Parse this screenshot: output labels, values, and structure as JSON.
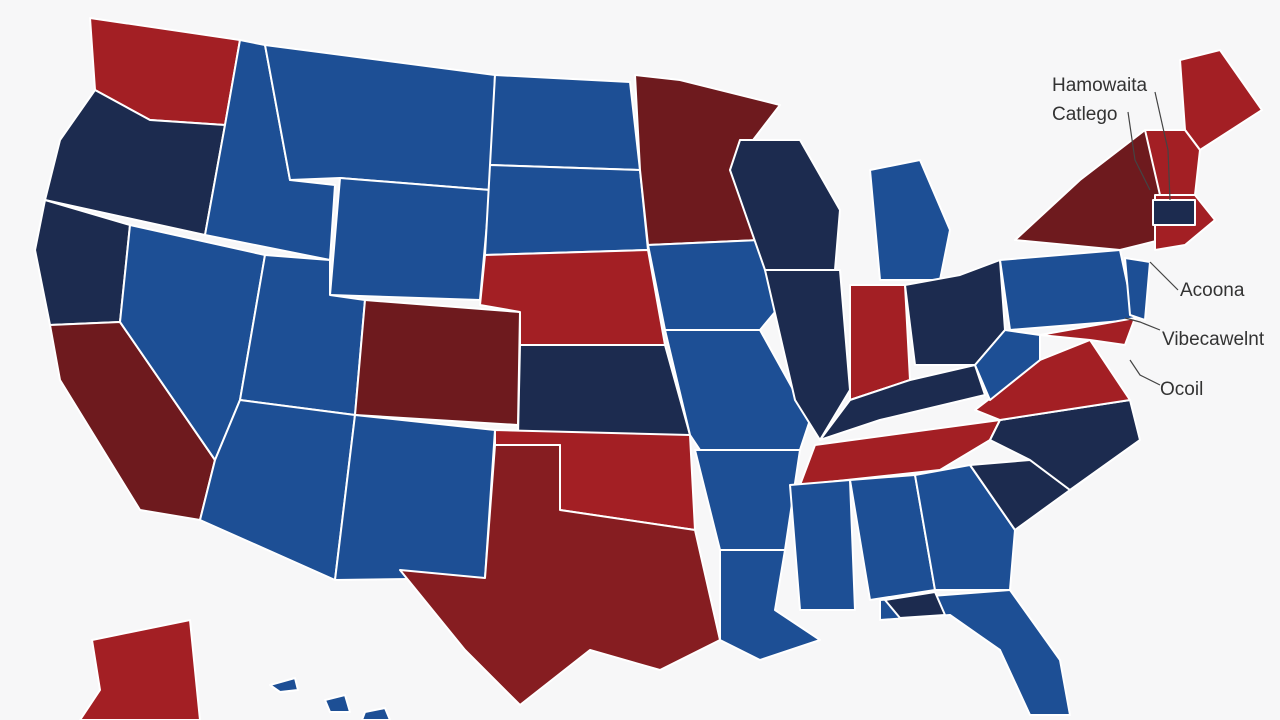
{
  "labels": [
    "Hamowaita",
    "Catlego",
    "Acoona",
    "Vibecawelnt",
    "Ocoil"
  ]
}
